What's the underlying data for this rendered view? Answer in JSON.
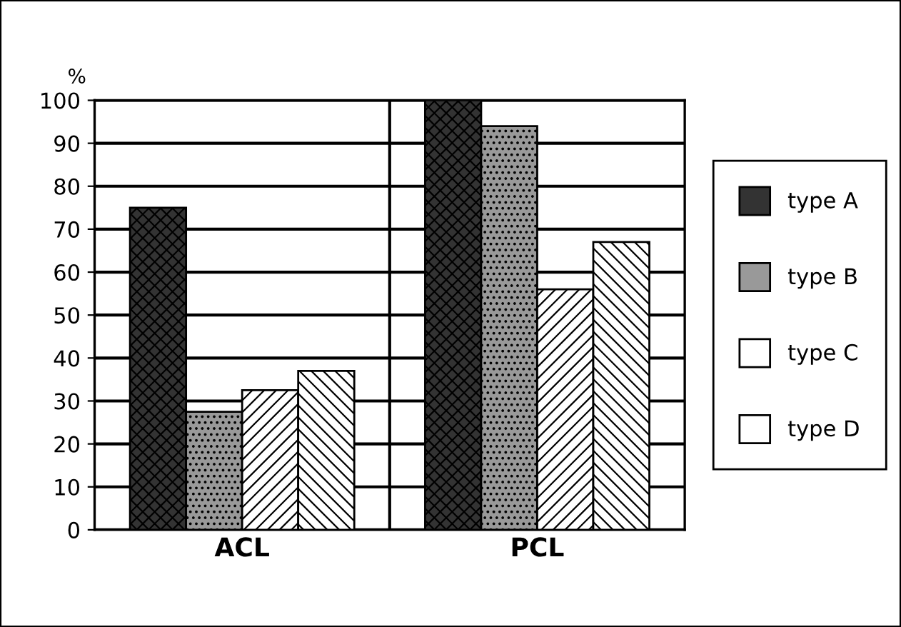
{
  "chart_data": {
    "type": "bar",
    "ylabel": "%",
    "categories": [
      "ACL",
      "PCL"
    ],
    "series": [
      {
        "name": "type A",
        "color": "#333333",
        "values": [
          75,
          100
        ]
      },
      {
        "name": "type B",
        "color": "#999999",
        "values": [
          27.5,
          94
        ]
      },
      {
        "name": "type C",
        "color": "#ffffff",
        "values": [
          32.5,
          56
        ]
      },
      {
        "name": "type D",
        "color": "#ffffff",
        "values": [
          37,
          67
        ]
      }
    ],
    "ylim": [
      0,
      100
    ],
    "yticks": [
      0,
      10,
      20,
      30,
      40,
      50,
      60,
      70,
      80,
      90,
      100
    ],
    "grid": "y",
    "legend": "right"
  }
}
